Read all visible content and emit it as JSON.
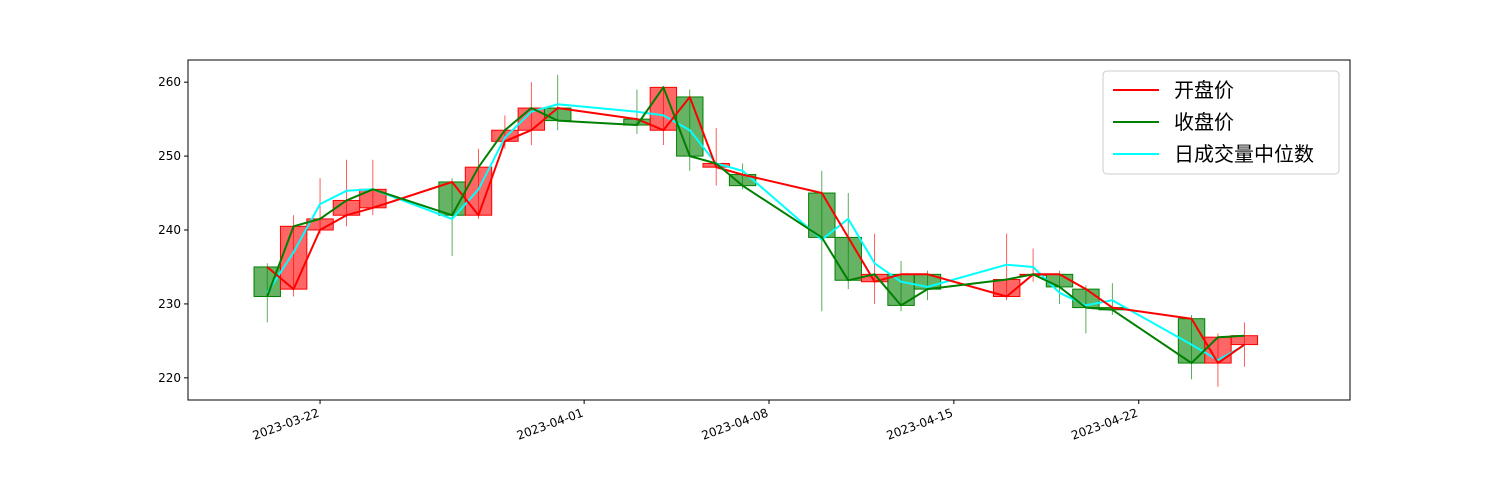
{
  "chart_data": {
    "type": "candlestick",
    "title": "",
    "xlabel": "",
    "ylabel": "",
    "ylim": [
      217,
      263
    ],
    "yticks": [
      220,
      230,
      240,
      250,
      260
    ],
    "xlim": [
      "2023-03-17",
      "2023-04-30"
    ],
    "xticks": [
      "2023-03-22",
      "2023-04-01",
      "2023-04-08",
      "2023-04-15",
      "2023-04-22"
    ],
    "grid": false,
    "legend_position": "top-right",
    "colors": {
      "up": "#ff0000",
      "down": "#008000",
      "open_line": "#ff0000",
      "close_line": "#008000",
      "median_line": "#00ffff"
    },
    "dates": [
      "2023-03-20",
      "2023-03-21",
      "2023-03-22",
      "2023-03-23",
      "2023-03-24",
      "2023-03-27",
      "2023-03-28",
      "2023-03-29",
      "2023-03-30",
      "2023-03-31",
      "2023-04-03",
      "2023-04-04",
      "2023-04-05",
      "2023-04-06",
      "2023-04-07",
      "2023-04-10",
      "2023-04-11",
      "2023-04-12",
      "2023-04-13",
      "2023-04-14",
      "2023-04-17",
      "2023-04-18",
      "2023-04-19",
      "2023-04-20",
      "2023-04-21",
      "2023-04-24",
      "2023-04-25",
      "2023-04-26"
    ],
    "open": [
      235.0,
      232.0,
      240.0,
      242.0,
      243.0,
      246.5,
      242.0,
      252.0,
      253.5,
      256.5,
      255.0,
      253.5,
      258.0,
      248.5,
      247.5,
      245.0,
      239.0,
      233.0,
      234.0,
      234.0,
      231.0,
      234.0,
      234.0,
      232.0,
      229.5,
      228.0,
      222.0,
      224.5
    ],
    "close": [
      231.0,
      240.5,
      241.5,
      244.0,
      245.5,
      242.0,
      248.5,
      253.5,
      256.5,
      254.8,
      254.2,
      259.3,
      250.0,
      249.0,
      246.0,
      239.0,
      233.2,
      234.0,
      229.8,
      232.0,
      233.3,
      234.0,
      232.3,
      229.5,
      229.2,
      222.0,
      225.5,
      225.7
    ],
    "high": [
      235.5,
      242.0,
      247.0,
      249.5,
      249.5,
      247.0,
      251.0,
      255.5,
      260.0,
      261.0,
      259.0,
      259.5,
      259.0,
      253.8,
      249.0,
      248.0,
      245.0,
      239.5,
      235.8,
      234.5,
      239.5,
      237.5,
      234.5,
      232.5,
      232.8,
      228.5,
      226.0,
      227.5
    ],
    "low": [
      227.5,
      231.0,
      239.5,
      240.5,
      242.0,
      236.5,
      241.5,
      251.0,
      251.5,
      253.5,
      253.0,
      251.5,
      248.0,
      246.0,
      245.5,
      229.0,
      232.0,
      230.0,
      229.0,
      230.5,
      230.5,
      233.0,
      230.0,
      226.0,
      228.5,
      219.8,
      218.8,
      221.5
    ],
    "median": [
      231.5,
      237.0,
      243.5,
      245.3,
      245.5,
      241.5,
      245.5,
      252.5,
      256.0,
      257.0,
      256.0,
      255.5,
      253.5,
      249.0,
      248.0,
      238.7,
      241.5,
      235.5,
      233.0,
      232.3,
      235.3,
      235.0,
      231.5,
      229.8,
      230.5,
      224.5,
      222.4,
      224.4
    ],
    "legend": [
      {
        "label": "开盘价",
        "color": "#ff0000"
      },
      {
        "label": "收盘价",
        "color": "#008000"
      },
      {
        "label": "日成交量中位数",
        "color": "#00ffff"
      }
    ]
  }
}
